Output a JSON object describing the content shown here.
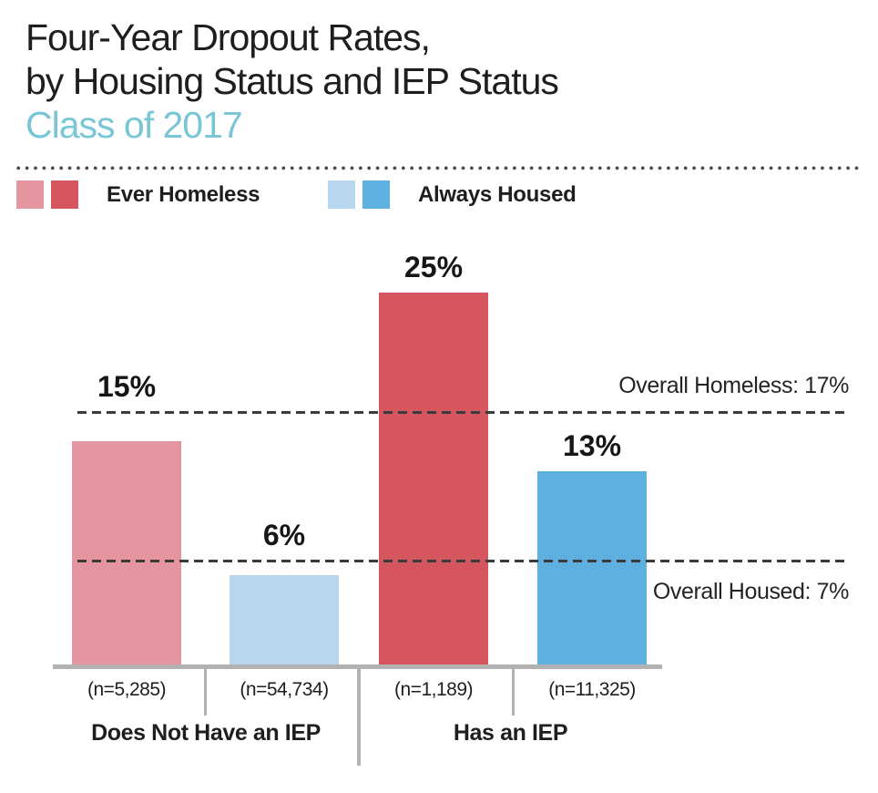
{
  "header": {
    "title_line1": "Four-Year Dropout Rates,",
    "title_line2": "by Housing Status and IEP Status",
    "subtitle": "Class of 2017",
    "title_color": "#1E1E1E",
    "subtitle_color": "#79C6D6"
  },
  "legend": {
    "items": [
      {
        "label": "Ever Homeless",
        "swatches": [
          "#E4959F",
          "#D6565F"
        ]
      },
      {
        "label": "Always Housed",
        "swatches": [
          "#B8D7EE",
          "#5DB0DF"
        ]
      }
    ]
  },
  "chart_data": {
    "type": "bar",
    "title": "Four-Year Dropout Rates, by Housing Status and IEP Status",
    "subtitle": "Class of 2017",
    "unit": "percent",
    "ylim": [
      0,
      26
    ],
    "grid": false,
    "legend_position": "top",
    "categories": [
      "Does Not Have an IEP",
      "Has an IEP"
    ],
    "series": [
      {
        "name": "Ever Homeless",
        "values": [
          15,
          25
        ]
      },
      {
        "name": "Always Housed",
        "values": [
          6,
          13
        ]
      }
    ],
    "bars": [
      {
        "group": "Does Not Have an IEP",
        "series": "Ever Homeless",
        "value": 15,
        "value_label": "15%",
        "n_label": "(n=5,285)",
        "color": "#E4959F"
      },
      {
        "group": "Does Not Have an IEP",
        "series": "Always Housed",
        "value": 6,
        "value_label": "6%",
        "n_label": "(n=54,734)",
        "color": "#B8D7EE"
      },
      {
        "group": "Has an IEP",
        "series": "Ever Homeless",
        "value": 25,
        "value_label": "25%",
        "n_label": "(n=1,189)",
        "color": "#D6565F"
      },
      {
        "group": "Has an IEP",
        "series": "Always Housed",
        "value": 13,
        "value_label": "13%",
        "n_label": "(n=11,325)",
        "color": "#5DB0DF"
      }
    ],
    "reference_lines": [
      {
        "label": "Overall Homeless: 17%",
        "value": 17,
        "series": "Ever Homeless",
        "label_position": "above"
      },
      {
        "label": "Overall Housed: 7%",
        "value": 7,
        "series": "Always Housed",
        "label_position": "below"
      }
    ],
    "group_labels": [
      "Does Not Have an IEP",
      "Has an IEP"
    ]
  }
}
